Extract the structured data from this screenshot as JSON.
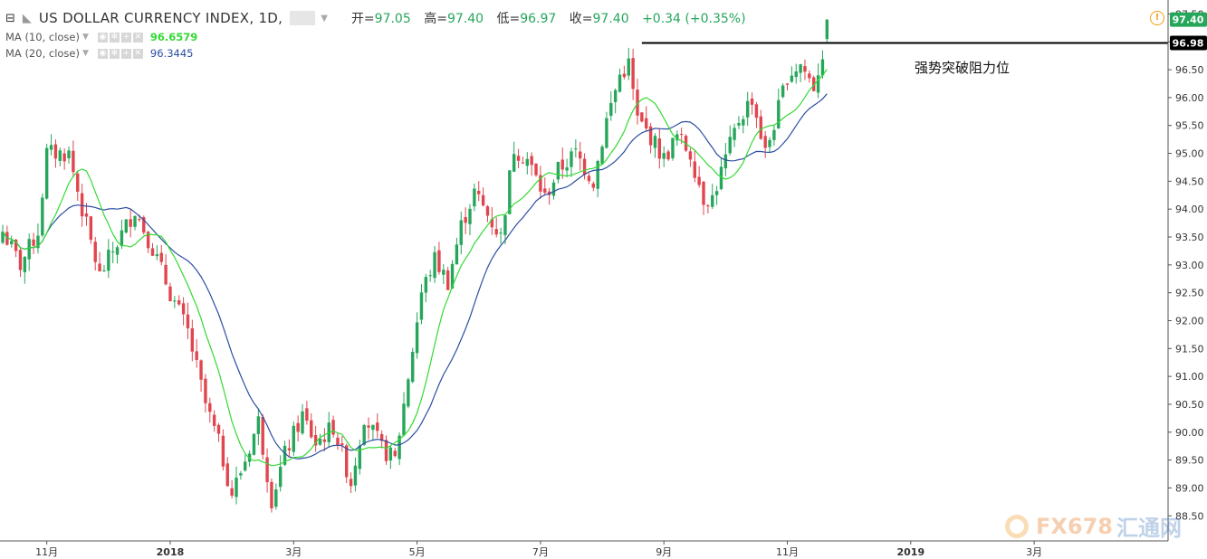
{
  "legend": {
    "title": "US DOLLAR CURRENCY INDEX, 1D,",
    "open_label": "开=",
    "open": "97.05",
    "high_label": "高=",
    "high": "97.40",
    "low_label": "低=",
    "low": "96.97",
    "close_label": "收=",
    "close": "97.40",
    "change": "+0.34 (+0.35%)",
    "ma10_label": "MA (10, close)",
    "ma10_value": "96.6579",
    "ma20_label": "MA (20, close)",
    "ma20_value": "96.3445"
  },
  "annotation": {
    "text": "强势突破阻力位",
    "level": 96.98
  },
  "price_tags": {
    "last": "97.40",
    "line": "96.98"
  },
  "watermark": {
    "brand": "FX678",
    "cn": "汇通网"
  },
  "colors": {
    "up": "#26a65b",
    "down": "#e0464e",
    "ma10": "#33d933",
    "ma20": "#2c4ea1",
    "accent": "#f39c12"
  },
  "chart_data": {
    "type": "candlestick",
    "title": "US DOLLAR CURRENCY INDEX, 1D",
    "ylim": [
      88.05,
      97.75
    ],
    "y_ticks": [
      "88.50",
      "89.00",
      "89.50",
      "90.00",
      "90.50",
      "91.00",
      "91.50",
      "92.00",
      "92.50",
      "93.00",
      "93.50",
      "94.00",
      "94.50",
      "95.00",
      "95.50",
      "96.00",
      "96.50",
      "97.00",
      "97.50"
    ],
    "x_ticks": [
      "11月",
      "2018",
      "3月",
      "5月",
      "7月",
      "9月",
      "11月",
      "2019",
      "3月"
    ],
    "x_tick_index": [
      10,
      38,
      66,
      94,
      122,
      150,
      178,
      206,
      234
    ],
    "series": [
      {
        "name": "MA (10, close)",
        "last": 96.6579
      },
      {
        "name": "MA (20, close)",
        "last": 96.3445
      }
    ],
    "close_anchors": [
      [
        0,
        93.6
      ],
      [
        4,
        93.0
      ],
      [
        8,
        93.6
      ],
      [
        10,
        95.0
      ],
      [
        15,
        95.0
      ],
      [
        18,
        94.0
      ],
      [
        22,
        92.8
      ],
      [
        26,
        93.4
      ],
      [
        30,
        94.0
      ],
      [
        34,
        93.3
      ],
      [
        38,
        92.5
      ],
      [
        42,
        91.8
      ],
      [
        46,
        90.5
      ],
      [
        49,
        89.8
      ],
      [
        52,
        88.9
      ],
      [
        55,
        89.5
      ],
      [
        58,
        90.2
      ],
      [
        61,
        88.8
      ],
      [
        64,
        89.6
      ],
      [
        68,
        90.3
      ],
      [
        71,
        89.8
      ],
      [
        75,
        90.1
      ],
      [
        79,
        89.1
      ],
      [
        82,
        90.3
      ],
      [
        86,
        89.7
      ],
      [
        89,
        89.5
      ],
      [
        92,
        91.0
      ],
      [
        95,
        92.5
      ],
      [
        98,
        93.1
      ],
      [
        101,
        92.7
      ],
      [
        104,
        93.7
      ],
      [
        107,
        94.3
      ],
      [
        110,
        93.9
      ],
      [
        113,
        93.5
      ],
      [
        116,
        95.1
      ],
      [
        119,
        94.9
      ],
      [
        123,
        94.2
      ],
      [
        126,
        94.7
      ],
      [
        130,
        95.0
      ],
      [
        134,
        94.5
      ],
      [
        137,
        95.6
      ],
      [
        140,
        96.4
      ],
      [
        142,
        96.6
      ],
      [
        144,
        95.6
      ],
      [
        147,
        95.3
      ],
      [
        150,
        94.9
      ],
      [
        153,
        95.3
      ],
      [
        156,
        95.0
      ],
      [
        159,
        94.2
      ],
      [
        161,
        94.2
      ],
      [
        164,
        94.9
      ],
      [
        167,
        95.6
      ],
      [
        170,
        96.0
      ],
      [
        173,
        95.0
      ],
      [
        176,
        95.8
      ],
      [
        178,
        96.4
      ],
      [
        181,
        96.6
      ],
      [
        184,
        96.2
      ],
      [
        186,
        96.8
      ],
      [
        187,
        97.4
      ]
    ]
  }
}
